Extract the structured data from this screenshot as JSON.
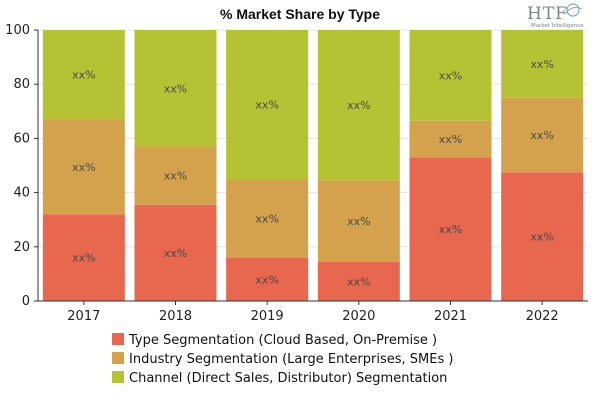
{
  "logo": {
    "text": "HTF",
    "tagline": "Market Intelligence"
  },
  "colors": {
    "type": "#e8674f",
    "industry": "#d4a24c",
    "channel": "#b5c234",
    "axis": "#333333",
    "grid": "#e5e5e5"
  },
  "chart_data": {
    "type": "bar",
    "stacked": true,
    "title": "% Market Share by Type",
    "categories": [
      "2017",
      "2018",
      "2019",
      "2020",
      "2021",
      "2022"
    ],
    "series": [
      {
        "name": "Type Segmentation (Cloud Based, On-Premise )",
        "values": [
          32,
          35.5,
          16,
          14.5,
          53,
          47.5
        ],
        "labels": [
          "xx%",
          "xx%",
          "xx%",
          "xx%",
          "xx%",
          "xx%"
        ]
      },
      {
        "name": "Industry Segmentation (Large Enterprises, SMEs )",
        "values": [
          35,
          21.5,
          29,
          30,
          13.5,
          27.5
        ],
        "labels": [
          "xx%",
          "xx%",
          "xx%",
          "xx%",
          "xx%",
          "xx%"
        ]
      },
      {
        "name": "Channel (Direct Sales, Distributor) Segmentation",
        "values": [
          33,
          43,
          55,
          55.5,
          33.5,
          25
        ],
        "labels": [
          "xx%",
          "xx%",
          "xx%",
          "xx%",
          "xx%",
          "xx%"
        ]
      }
    ],
    "yticks": [
      "0",
      "20",
      "40",
      "60",
      "80",
      "100"
    ],
    "ylim": [
      0,
      100
    ],
    "xlabel": "",
    "ylabel": "",
    "grid": true,
    "legend_position": "bottom"
  }
}
